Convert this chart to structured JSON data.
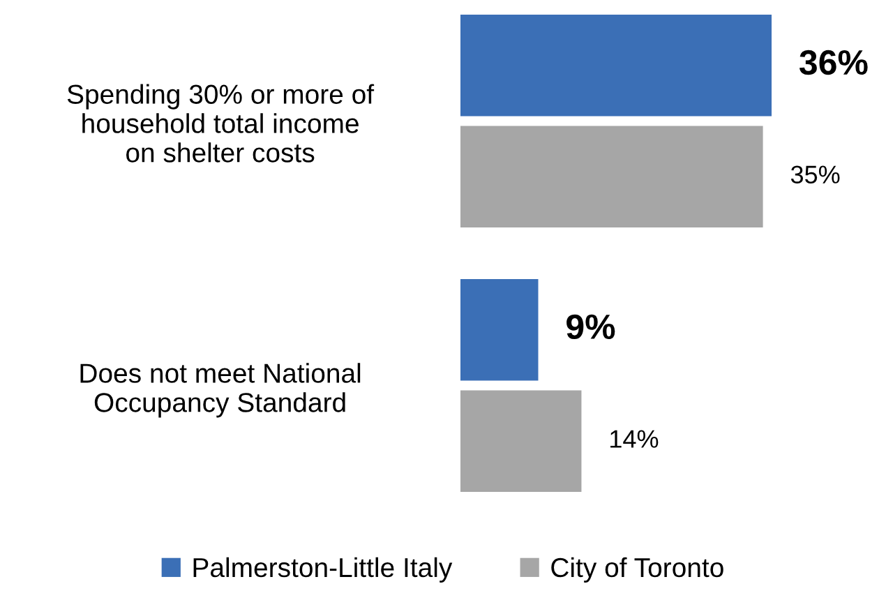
{
  "chart_data": {
    "type": "bar",
    "orientation": "horizontal",
    "legend": "bottom",
    "grid": false,
    "categories": [
      "Spending 30% or more of\nhousehold total income\non shelter costs",
      "Does not meet National\nOccupancy Standard"
    ],
    "series": [
      {
        "name": "Palmerston-Little Italy",
        "color": "#3b6fb6",
        "values": [
          36,
          9
        ],
        "value_labels": [
          "36%",
          "9%"
        ]
      },
      {
        "name": "City of Toronto",
        "color": "#a6a6a6",
        "values": [
          35,
          14
        ],
        "value_labels": [
          "35%",
          "14%"
        ]
      }
    ]
  }
}
